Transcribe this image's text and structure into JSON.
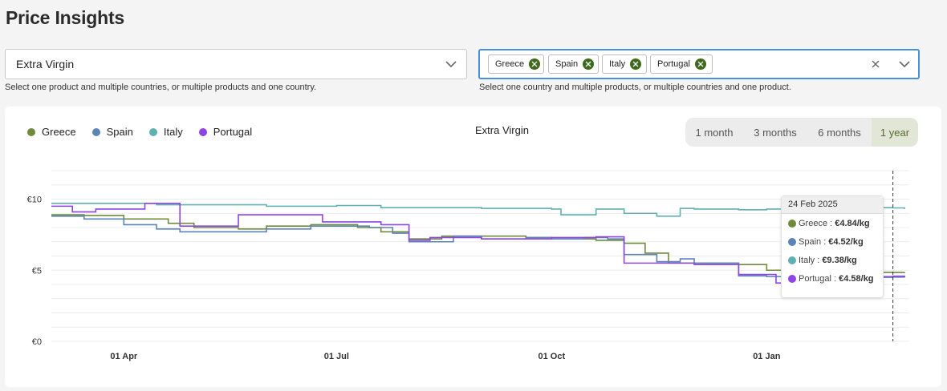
{
  "page": {
    "title": "Price Insights"
  },
  "product_select": {
    "value": "Extra Virgin",
    "helper": "Select one product and multiple countries, or multiple products and one country."
  },
  "country_select": {
    "chips": [
      "Greece",
      "Spain",
      "Italy",
      "Portugal"
    ],
    "helper": "Select one country and multiple products, or multiple countries and one product."
  },
  "icons": {
    "dropdown": "chevron-down-icon",
    "clear": "close-icon",
    "chip_remove": "close-circle-icon"
  },
  "range": {
    "options": [
      "1 month",
      "3 months",
      "6 months",
      "1 year"
    ],
    "selected": "1 year"
  },
  "tooltip": {
    "date": "24 Feb 2025",
    "rows": [
      {
        "country": "Greece",
        "price": "€4.84/kg"
      },
      {
        "country": "Spain",
        "price": "€4.52/kg"
      },
      {
        "country": "Italy",
        "price": "€9.38/kg"
      },
      {
        "country": "Portugal",
        "price": "€4.58/kg"
      }
    ]
  },
  "chart_data": {
    "type": "line",
    "title": "Extra Virgin",
    "xlabel": "",
    "ylabel": "",
    "y_ticks": [
      "€10",
      "€5",
      "€0"
    ],
    "y_tick_values": [
      10,
      5,
      0
    ],
    "ylim": [
      0,
      12
    ],
    "x_ticks": [
      "01 Apr",
      "01 Jul",
      "01 Oct",
      "01 Jan"
    ],
    "x_tick_dates": [
      "2024-04-01",
      "2024-07-01",
      "2024-10-01",
      "2025-01-01"
    ],
    "grid": true,
    "legend_position": "top-left",
    "colors": {
      "Greece": "#6f8a3a",
      "Spain": "#5b84b6",
      "Italy": "#5fb0b0",
      "Portugal": "#8e44e8"
    },
    "series": [
      {
        "name": "Greece",
        "points": [
          [
            "2024-03-01",
            8.9
          ],
          [
            "2024-03-15",
            8.85
          ],
          [
            "2024-04-01",
            8.6
          ],
          [
            "2024-04-20",
            8.3
          ],
          [
            "2024-05-01",
            8.0
          ],
          [
            "2024-05-20",
            7.9
          ],
          [
            "2024-06-01",
            8.1
          ],
          [
            "2024-06-20",
            8.2
          ],
          [
            "2024-07-01",
            8.2
          ],
          [
            "2024-07-10",
            8.0
          ],
          [
            "2024-07-20",
            7.7
          ],
          [
            "2024-08-01",
            7.2
          ],
          [
            "2024-08-15",
            7.4
          ],
          [
            "2024-09-01",
            7.4
          ],
          [
            "2024-09-20",
            7.3
          ],
          [
            "2024-10-01",
            7.2
          ],
          [
            "2024-10-20",
            7.1
          ],
          [
            "2024-11-01",
            6.9
          ],
          [
            "2024-11-10",
            6.2
          ],
          [
            "2024-11-20",
            5.5
          ],
          [
            "2024-12-01",
            5.5
          ],
          [
            "2024-12-20",
            5.4
          ],
          [
            "2025-01-01",
            5.0
          ],
          [
            "2025-01-20",
            4.9
          ],
          [
            "2025-02-01",
            4.85
          ],
          [
            "2025-02-24",
            4.84
          ],
          [
            "2025-03-01",
            4.85
          ]
        ]
      },
      {
        "name": "Spain",
        "points": [
          [
            "2024-03-01",
            8.8
          ],
          [
            "2024-03-15",
            8.6
          ],
          [
            "2024-04-01",
            8.2
          ],
          [
            "2024-04-15",
            7.9
          ],
          [
            "2024-04-25",
            7.7
          ],
          [
            "2024-05-10",
            7.7
          ],
          [
            "2024-06-01",
            7.9
          ],
          [
            "2024-06-20",
            8.1
          ],
          [
            "2024-07-01",
            8.1
          ],
          [
            "2024-07-15",
            8.0
          ],
          [
            "2024-07-25",
            7.6
          ],
          [
            "2024-08-01",
            7.0
          ],
          [
            "2024-08-20",
            7.4
          ],
          [
            "2024-09-01",
            7.2
          ],
          [
            "2024-09-20",
            7.3
          ],
          [
            "2024-10-01",
            7.2
          ],
          [
            "2024-10-15",
            7.3
          ],
          [
            "2024-10-25",
            7.2
          ],
          [
            "2024-11-01",
            6.1
          ],
          [
            "2024-11-15",
            5.6
          ],
          [
            "2024-11-25",
            5.8
          ],
          [
            "2024-12-01",
            5.5
          ],
          [
            "2024-12-20",
            4.6
          ],
          [
            "2025-01-01",
            4.55
          ],
          [
            "2025-02-01",
            4.5
          ],
          [
            "2025-02-24",
            4.52
          ],
          [
            "2025-03-01",
            4.5
          ]
        ]
      },
      {
        "name": "Italy",
        "points": [
          [
            "2024-03-01",
            9.7
          ],
          [
            "2024-04-01",
            9.7
          ],
          [
            "2024-04-15",
            9.6
          ],
          [
            "2024-05-01",
            9.6
          ],
          [
            "2024-06-01",
            9.5
          ],
          [
            "2024-07-01",
            9.55
          ],
          [
            "2024-07-20",
            9.4
          ],
          [
            "2024-08-01",
            9.4
          ],
          [
            "2024-09-01",
            9.35
          ],
          [
            "2024-10-01",
            9.3
          ],
          [
            "2024-10-05",
            8.9
          ],
          [
            "2024-10-20",
            9.3
          ],
          [
            "2024-11-01",
            9.0
          ],
          [
            "2024-11-15",
            8.8
          ],
          [
            "2024-11-25",
            9.35
          ],
          [
            "2024-12-01",
            9.3
          ],
          [
            "2024-12-20",
            9.25
          ],
          [
            "2025-01-01",
            9.3
          ],
          [
            "2025-01-20",
            9.5
          ],
          [
            "2025-02-01",
            9.4
          ],
          [
            "2025-02-24",
            9.38
          ],
          [
            "2025-03-01",
            9.3
          ]
        ]
      },
      {
        "name": "Portugal",
        "points": [
          [
            "2024-03-01",
            9.5
          ],
          [
            "2024-03-10",
            9.1
          ],
          [
            "2024-03-20",
            9.3
          ],
          [
            "2024-04-01",
            9.3
          ],
          [
            "2024-04-10",
            9.7
          ],
          [
            "2024-04-20",
            9.7
          ],
          [
            "2024-04-25",
            8.1
          ],
          [
            "2024-05-15",
            8.1
          ],
          [
            "2024-05-20",
            8.9
          ],
          [
            "2024-06-20",
            8.9
          ],
          [
            "2024-06-25",
            8.4
          ],
          [
            "2024-07-10",
            8.4
          ],
          [
            "2024-07-20",
            8.2
          ],
          [
            "2024-08-01",
            7.1
          ],
          [
            "2024-08-10",
            7.3
          ],
          [
            "2024-09-01",
            7.2
          ],
          [
            "2024-09-20",
            7.2
          ],
          [
            "2024-10-01",
            7.3
          ],
          [
            "2024-10-20",
            7.35
          ],
          [
            "2024-11-01",
            5.5
          ],
          [
            "2024-11-20",
            5.5
          ],
          [
            "2024-12-01",
            5.4
          ],
          [
            "2024-12-20",
            4.7
          ],
          [
            "2025-01-01",
            4.7
          ],
          [
            "2025-01-05",
            4.1
          ],
          [
            "2025-01-20",
            4.0
          ],
          [
            "2025-02-01",
            4.55
          ],
          [
            "2025-02-24",
            4.58
          ],
          [
            "2025-03-01",
            4.5
          ]
        ]
      }
    ],
    "hover_date": "2025-02-24"
  }
}
